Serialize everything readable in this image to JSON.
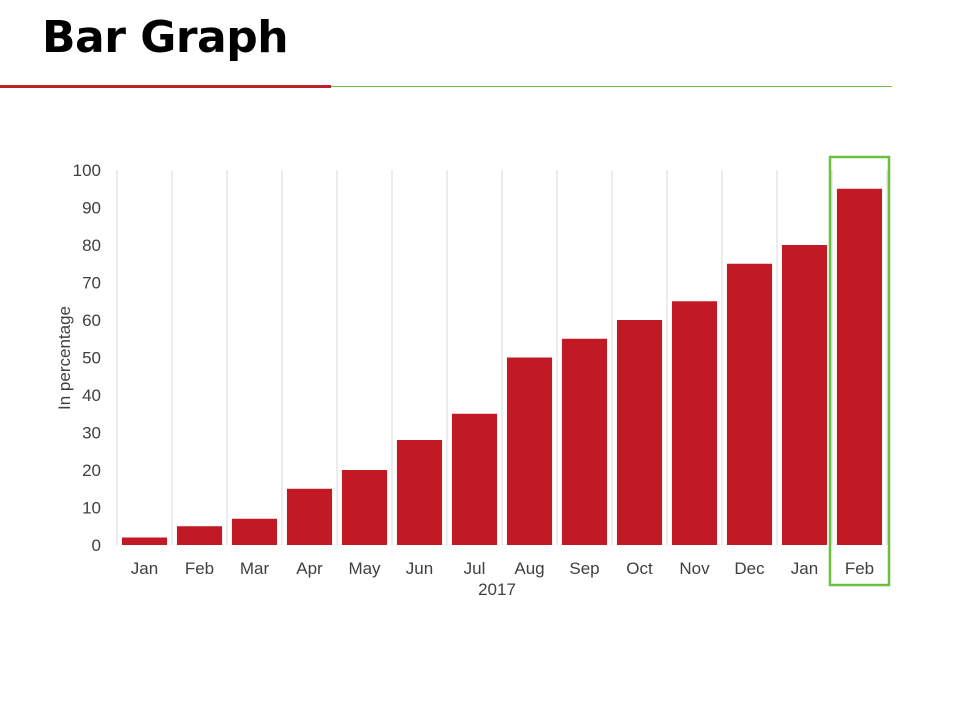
{
  "slide": {
    "title": "Bar Graph"
  },
  "colors": {
    "bar": "#c21a24",
    "accent_red": "#c0202a",
    "accent_green": "#6cbf3f",
    "highlight_box": "#6cbf3f",
    "grid": "#d9d9d9",
    "text": "#404040"
  },
  "chart_data": {
    "type": "bar",
    "categories": [
      "Jan",
      "Feb",
      "Mar",
      "Apr",
      "May",
      "Jun",
      "Jul",
      "Aug",
      "Sep",
      "Oct",
      "Nov",
      "Dec",
      "Jan",
      "Feb"
    ],
    "values": [
      2,
      5,
      7,
      15,
      20,
      28,
      35,
      50,
      55,
      60,
      65,
      75,
      80,
      95
    ],
    "title": "",
    "xlabel": "2017",
    "ylabel": "In percentage",
    "ylim": [
      0,
      100
    ],
    "yticks": [
      0,
      10,
      20,
      30,
      40,
      50,
      60,
      70,
      80,
      90,
      100
    ],
    "grid": "vertical",
    "legend": "none",
    "highlighted_category_index": 13
  }
}
